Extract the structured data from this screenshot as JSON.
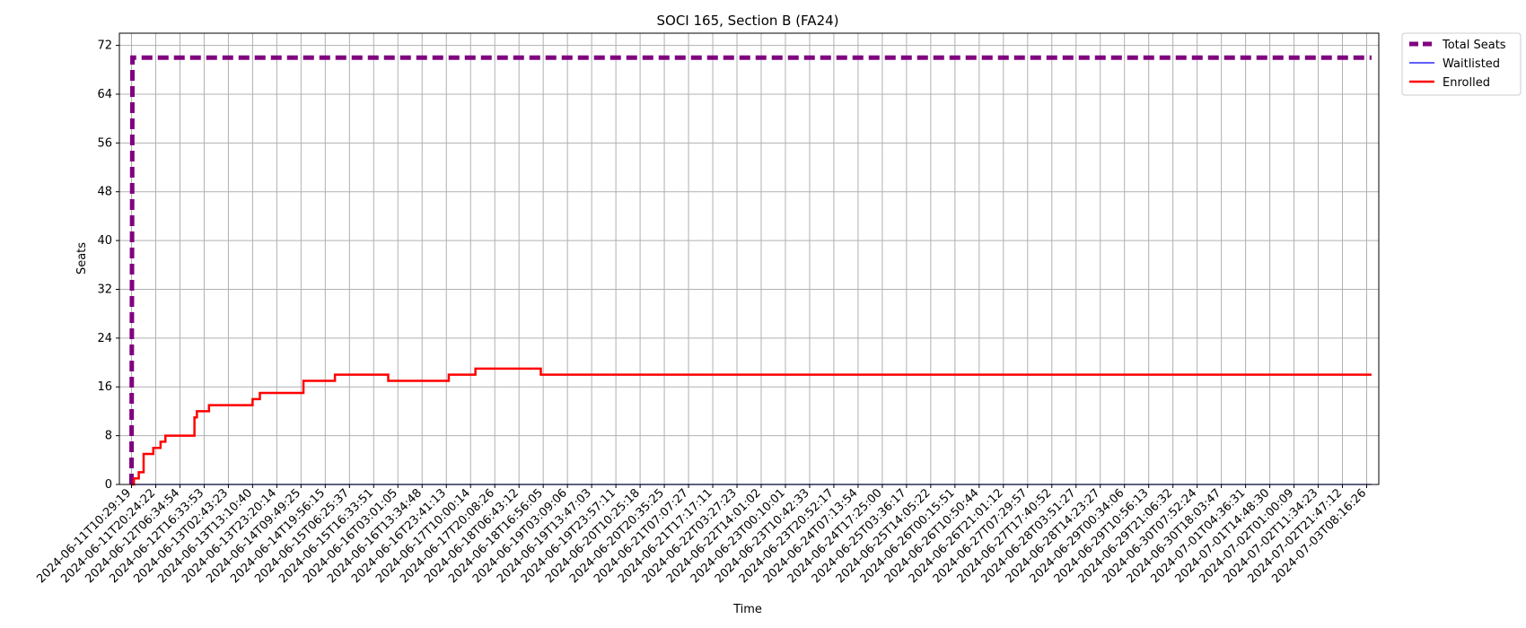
{
  "chart_data": {
    "type": "line",
    "title": "SOCI 165, Section B (FA24)",
    "xlabel": "Time",
    "ylabel": "Seats",
    "ylim": [
      0,
      74
    ],
    "yticks": [
      0,
      8,
      16,
      24,
      32,
      40,
      48,
      56,
      64,
      72
    ],
    "grid": true,
    "legend_position": "outside-top-right",
    "x_tick_labels": [
      "2024-06-11T10:29:19",
      "2024-06-11T20:24:22",
      "2024-06-12T06:34:54",
      "2024-06-12T16:33:53",
      "2024-06-13T02:43:23",
      "2024-06-13T13:10:40",
      "2024-06-13T23:20:14",
      "2024-06-14T09:49:25",
      "2024-06-14T19:56:15",
      "2024-06-15T06:25:37",
      "2024-06-15T16:33:51",
      "2024-06-16T03:01:05",
      "2024-06-16T13:34:48",
      "2024-06-16T23:41:13",
      "2024-06-17T10:00:14",
      "2024-06-17T20:08:26",
      "2024-06-18T06:43:12",
      "2024-06-18T16:56:05",
      "2024-06-19T03:09:06",
      "2024-06-19T13:47:03",
      "2024-06-19T23:57:11",
      "2024-06-20T10:25:18",
      "2024-06-20T20:35:25",
      "2024-06-21T07:07:27",
      "2024-06-21T17:17:11",
      "2024-06-22T03:27:23",
      "2024-06-22T14:01:02",
      "2024-06-23T00:10:01",
      "2024-06-23T10:42:33",
      "2024-06-23T20:52:17",
      "2024-06-24T07:13:54",
      "2024-06-24T17:25:00",
      "2024-06-25T03:36:17",
      "2024-06-25T14:05:22",
      "2024-06-26T00:15:51",
      "2024-06-26T10:50:44",
      "2024-06-26T21:01:12",
      "2024-06-27T07:29:57",
      "2024-06-27T17:40:52",
      "2024-06-28T03:51:27",
      "2024-06-28T14:23:27",
      "2024-06-29T00:34:06",
      "2024-06-29T10:56:13",
      "2024-06-29T21:06:32",
      "2024-06-30T07:52:24",
      "2024-06-30T18:03:47",
      "2024-07-01T04:36:31",
      "2024-07-01T14:48:30",
      "2024-07-02T01:00:09",
      "2024-07-02T11:34:23",
      "2024-07-02T21:47:12",
      "2024-07-03T08:16:26"
    ],
    "series": [
      {
        "name": "Total Seats",
        "color": "#800080",
        "style": "dashed",
        "points": [
          [
            0,
            0
          ],
          [
            0.04,
            70
          ],
          [
            51.2,
            70
          ]
        ]
      },
      {
        "name": "Waitlisted",
        "color": "#0000ff",
        "style": "solid-thin",
        "points": [
          [
            0,
            0
          ],
          [
            51.2,
            0
          ]
        ]
      },
      {
        "name": "Enrolled",
        "color": "#ff0000",
        "style": "step",
        "points": [
          [
            0,
            0
          ],
          [
            0.1,
            1
          ],
          [
            0.3,
            2
          ],
          [
            0.5,
            5
          ],
          [
            0.9,
            6
          ],
          [
            1.2,
            7
          ],
          [
            1.4,
            8
          ],
          [
            2.6,
            11
          ],
          [
            2.7,
            12
          ],
          [
            3.2,
            13
          ],
          [
            5.0,
            14
          ],
          [
            5.3,
            15
          ],
          [
            7.1,
            17
          ],
          [
            8.4,
            18
          ],
          [
            10.6,
            17
          ],
          [
            13.1,
            18
          ],
          [
            14.2,
            19
          ],
          [
            16.9,
            18
          ],
          [
            51.2,
            18
          ]
        ]
      }
    ]
  }
}
